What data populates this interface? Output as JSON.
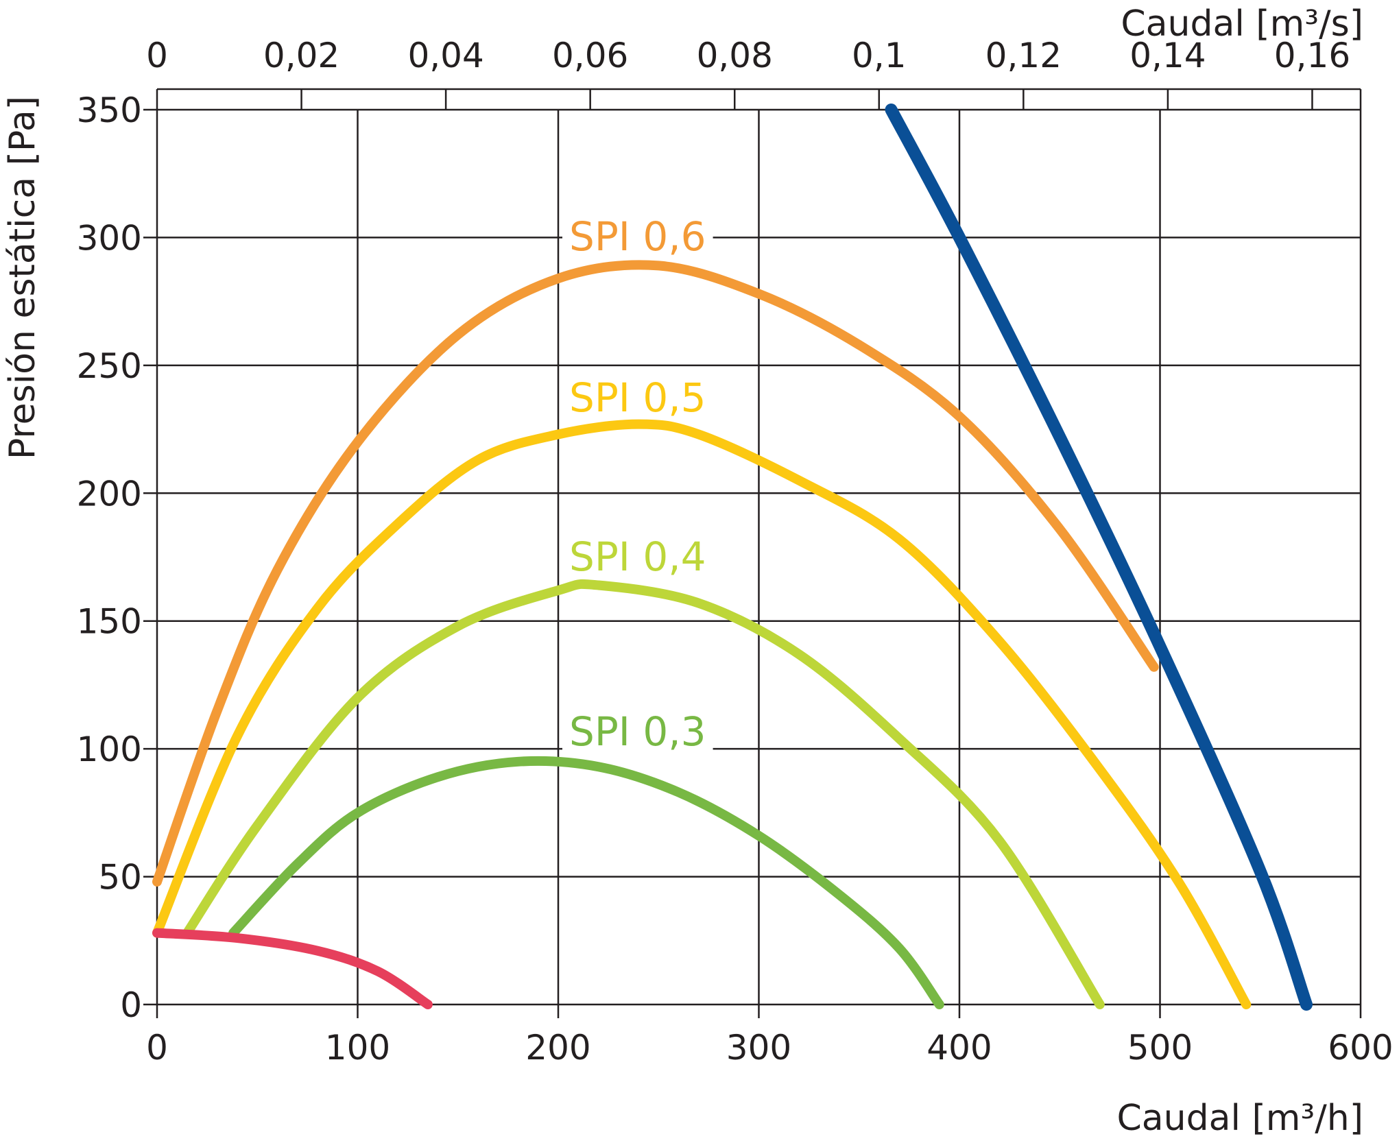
{
  "chart_data": {
    "type": "line",
    "xlabel": "Caudal [m³/h]",
    "x2label": "Caudal [m³/s]",
    "ylabel": "Presión estática [Pa]",
    "xlim": [
      0,
      600
    ],
    "ylim": [
      0,
      350
    ],
    "x2lim": [
      0,
      0.1667
    ],
    "x_ticks": [
      "0",
      "100",
      "200",
      "300",
      "400",
      "500",
      "600"
    ],
    "x2_ticks": [
      "0",
      "0,02",
      "0,04",
      "0,06",
      "0,08",
      "0,1",
      "0,12",
      "0,14",
      "0,16"
    ],
    "x2_tick_values": [
      0,
      0.02,
      0.04,
      0.06,
      0.08,
      0.1,
      0.12,
      0.14,
      0.16
    ],
    "y_ticks": [
      "0",
      "50",
      "100",
      "150",
      "200",
      "250",
      "300",
      "350"
    ],
    "grid": true,
    "series": [
      {
        "name": "SPI 0,6",
        "color": "#f39a36",
        "x": [
          0,
          30,
          60,
          100,
          150,
          200,
          250,
          300,
          350,
          400,
          450,
          497
        ],
        "y": [
          48,
          115,
          170,
          220,
          262,
          284,
          289,
          278,
          258,
          230,
          186,
          132
        ]
      },
      {
        "name": "SPI 0,5",
        "color": "#fcc812",
        "x": [
          0,
          40,
          80,
          120,
          160,
          200,
          240,
          270,
          320,
          370,
          420,
          470,
          510,
          543
        ],
        "y": [
          28,
          105,
          155,
          188,
          213,
          223,
          227,
          223,
          205,
          182,
          142,
          92,
          47,
          0
        ]
      },
      {
        "name": "SPI 0,4",
        "color": "#bdd639",
        "x": [
          15,
          50,
          100,
          150,
          200,
          220,
          270,
          320,
          370,
          420,
          470
        ],
        "y": [
          28,
          70,
          120,
          148,
          162,
          164,
          157,
          137,
          104,
          64,
          0
        ]
      },
      {
        "name": "SPI 0,3",
        "color": "#78b844",
        "x": [
          38,
          70,
          100,
          140,
          180,
          220,
          260,
          300,
          340,
          370,
          390
        ],
        "y": [
          28,
          55,
          75,
          89,
          95,
          93,
          83,
          66,
          43,
          22,
          0
        ]
      },
      {
        "name": "",
        "color": "#e63f5c",
        "x": [
          0,
          40,
          80,
          110,
          135
        ],
        "y": [
          28,
          26,
          21,
          13,
          0
        ]
      },
      {
        "name": "",
        "color": "#0a4f96",
        "x": [
          366,
          400,
          450,
          500,
          550,
          573
        ],
        "y": [
          350,
          300,
          222,
          140,
          52,
          0
        ]
      }
    ]
  }
}
